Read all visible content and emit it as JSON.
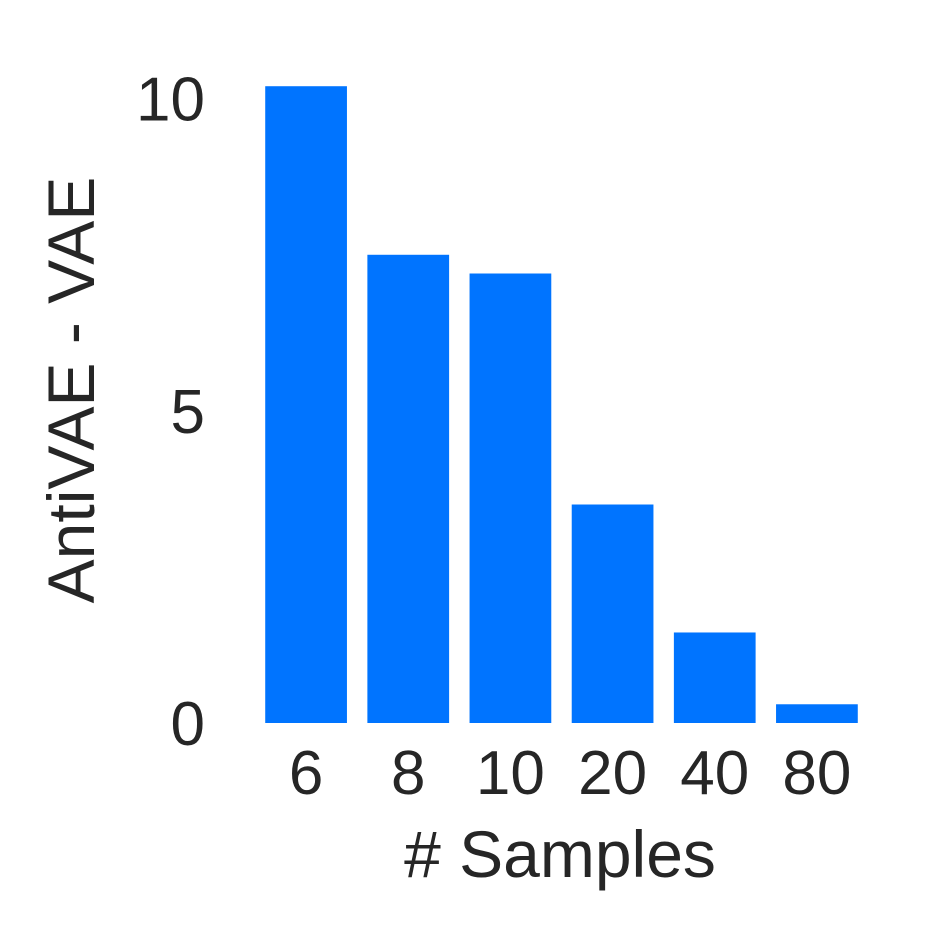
{
  "chart_data": {
    "type": "bar",
    "title": "",
    "xlabel": "# Samples",
    "ylabel": "AntiVAE - VAE",
    "categories": [
      "6",
      "8",
      "10",
      "20",
      "40",
      "80"
    ],
    "values": [
      10.2,
      7.5,
      7.2,
      3.5,
      1.45,
      0.3
    ],
    "ylim": [
      0,
      10.7
    ],
    "yticks": [
      "0",
      "5",
      "10"
    ],
    "grid": false,
    "legend": "none",
    "colors": {
      "bar": "#0074ff",
      "text": "#262626",
      "background": "#ffffff"
    }
  }
}
